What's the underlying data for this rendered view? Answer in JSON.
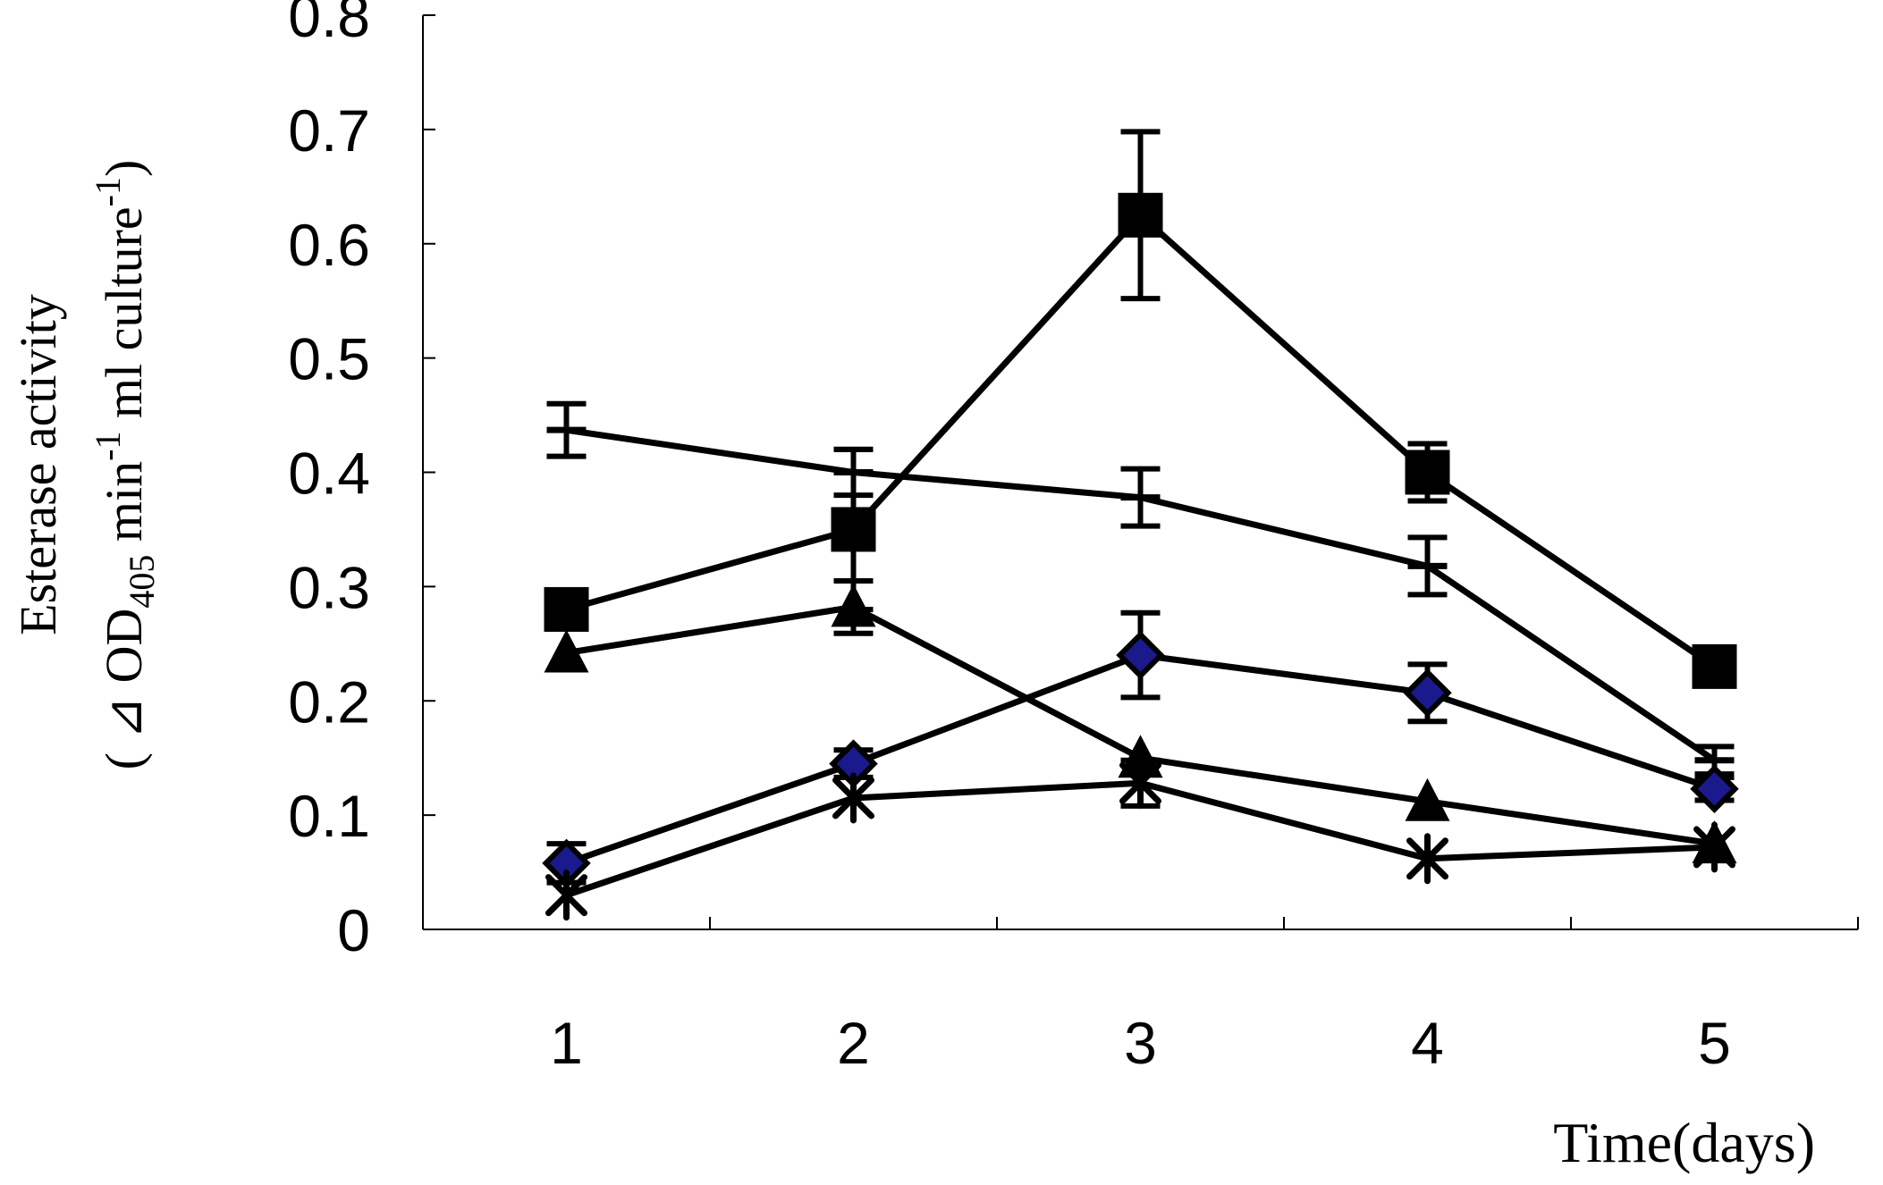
{
  "chart_data": {
    "type": "line",
    "xlabel": "Time(days)",
    "ylabel": {
      "line1": "Esterase activity",
      "line2_prefix": "( ⊿ OD",
      "line2_sub": "405",
      "line2_mid": " min",
      "line2_sup1": "-1",
      "line2_mid2": " ml culture",
      "line2_sup2": "-1",
      "line2_suffix": ")"
    },
    "categories": [
      "1",
      "2",
      "3",
      "4",
      "5"
    ],
    "x": [
      1,
      2,
      3,
      4,
      5
    ],
    "ylim": [
      0,
      0.8
    ],
    "yticks": [
      0,
      0.1,
      0.2,
      0.3,
      0.4,
      0.5,
      0.6,
      0.7,
      0.8
    ],
    "ytick_labels": [
      "0",
      "0.1",
      "0.2",
      "0.3",
      "0.4",
      "0.5",
      "0.6",
      "0.7",
      "0.8"
    ],
    "grid": false,
    "series": [
      {
        "marker": "square",
        "values": [
          0.28,
          0.35,
          0.625,
          0.4,
          0.23
        ],
        "errors": [
          0.0,
          0.07,
          0.073,
          0.025,
          0.0
        ],
        "color": "#000000"
      },
      {
        "marker": "dash",
        "values": [
          0.437,
          0.4,
          0.378,
          0.318,
          0.148
        ],
        "errors": [
          0.023,
          0.02,
          0.025,
          0.025,
          0.012
        ],
        "color": "#000000"
      },
      {
        "marker": "triangle",
        "values": [
          0.242,
          0.282,
          0.15,
          0.112,
          0.075
        ],
        "errors": [
          0.0,
          0.023,
          0.0,
          0.0,
          0.0
        ],
        "color": "#000000"
      },
      {
        "marker": "diamond",
        "values": [
          0.058,
          0.145,
          0.24,
          0.207,
          0.123
        ],
        "errors": [
          0.017,
          0.012,
          0.037,
          0.025,
          0.01
        ],
        "color": "#000000",
        "fill": "#1a1a8c"
      },
      {
        "marker": "star",
        "values": [
          0.03,
          0.115,
          0.128,
          0.062,
          0.072
        ],
        "errors": [
          0.0,
          0.0,
          0.02,
          0.0,
          0.0
        ],
        "color": "#000000"
      }
    ]
  }
}
